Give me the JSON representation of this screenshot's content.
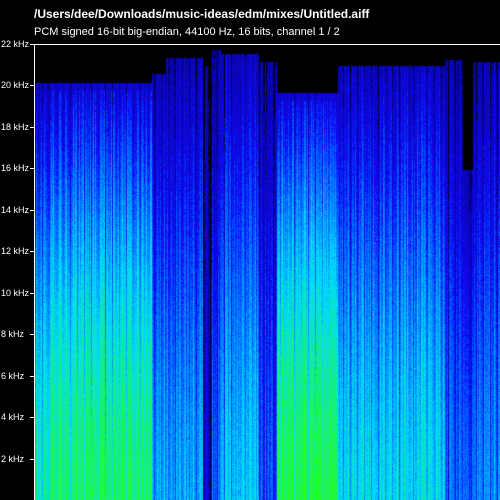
{
  "window": {
    "title": "/Users/dee/Downloads/music-ideas/edm/mixes/Untitled.aiff",
    "subtitle": "PCM signed 16-bit big-endian, 44100 Hz, 16 bits, channel 1 / 2"
  },
  "axis": {
    "ylabels": [
      "22 kHz",
      "20 kHz",
      "18 kHz",
      "16 kHz",
      "14 kHz",
      "12 kHz",
      "10 kHz",
      "8 kHz",
      "6 kHz",
      "4 kHz",
      "2 kHz"
    ],
    "ymax_khz": 22
  },
  "colors": {
    "background": "#000000",
    "low": "#1020ff",
    "mid": "#00c8ff",
    "high": "#40ff20"
  },
  "segments": [
    {
      "start": 0.0,
      "end": 0.03,
      "cutoff": 20.2,
      "energy": 0.75
    },
    {
      "start": 0.03,
      "end": 0.25,
      "cutoff": 20.2,
      "energy": 0.85
    },
    {
      "start": 0.25,
      "end": 0.28,
      "cutoff": 20.6,
      "energy": 0.55
    },
    {
      "start": 0.28,
      "end": 0.36,
      "cutoff": 21.4,
      "energy": 0.55
    },
    {
      "start": 0.36,
      "end": 0.38,
      "cutoff": 21.0,
      "energy": 0.2
    },
    {
      "start": 0.38,
      "end": 0.4,
      "cutoff": 21.8,
      "energy": 0.45
    },
    {
      "start": 0.4,
      "end": 0.48,
      "cutoff": 21.6,
      "energy": 0.6
    },
    {
      "start": 0.48,
      "end": 0.52,
      "cutoff": 21.2,
      "energy": 0.4
    },
    {
      "start": 0.52,
      "end": 0.65,
      "cutoff": 19.7,
      "energy": 0.9
    },
    {
      "start": 0.65,
      "end": 0.88,
      "cutoff": 21.0,
      "energy": 0.65
    },
    {
      "start": 0.88,
      "end": 0.92,
      "cutoff": 21.3,
      "energy": 0.45
    },
    {
      "start": 0.92,
      "end": 0.94,
      "cutoff": 16.0,
      "energy": 0.4
    },
    {
      "start": 0.94,
      "end": 1.0,
      "cutoff": 21.2,
      "energy": 0.5
    }
  ]
}
